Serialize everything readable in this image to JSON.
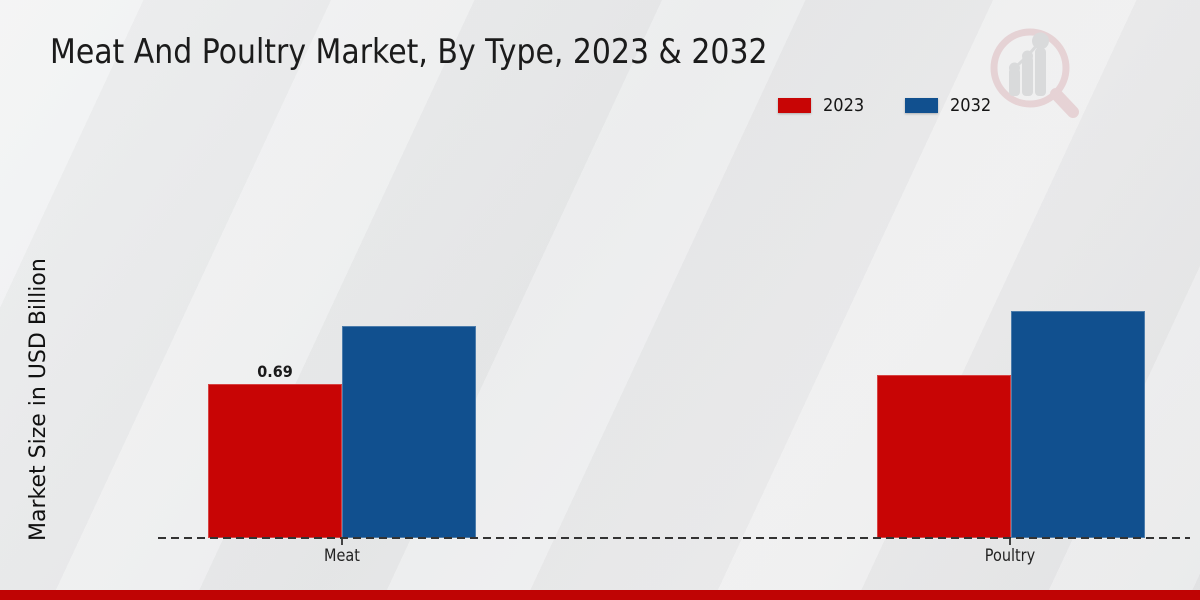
{
  "page": {
    "background_color": "#e9eaeb",
    "footer_bar_color": "#bf0404"
  },
  "chart_data": {
    "type": "bar",
    "title": "Meat And Poultry Market, By Type, 2023 & 2032",
    "xlabel": "",
    "ylabel": "Market Size in USD Billion",
    "categories": [
      "Meat",
      "Poultry"
    ],
    "series": [
      {
        "name": "2023",
        "color": "#c80505",
        "values": [
          0.69,
          0.73
        ]
      },
      {
        "name": "2032",
        "color": "#11508f",
        "values": [
          0.95,
          1.02
        ]
      }
    ],
    "value_labels": [
      {
        "category": "Meat",
        "series": "2023",
        "text": "0.69"
      }
    ],
    "legend_position": "top-right",
    "grid": false,
    "y_axis_ticks_visible": false,
    "baseline_style": "dashed",
    "ylim": [
      0,
      1.1
    ]
  },
  "watermark": {
    "icon": "magnifier-bar-chart-logo"
  }
}
